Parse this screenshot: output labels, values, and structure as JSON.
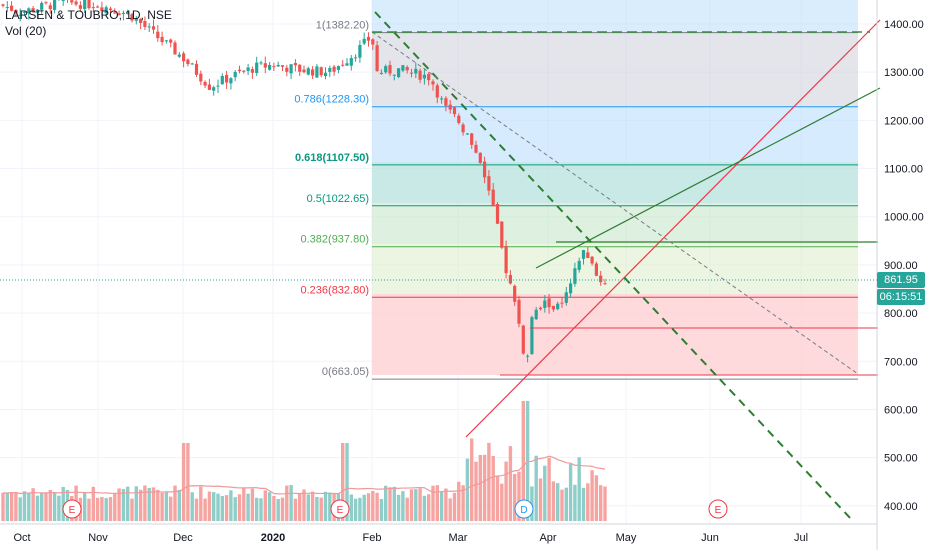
{
  "legend": {
    "symbol": "LARSEN & TOUBRO, 1D, NSE",
    "volume": "Vol (20)"
  },
  "price_axis": {
    "ticks": [
      "1400.00",
      "1300.00",
      "1200.00",
      "1100.00",
      "1000.00",
      "900.00",
      "800.00",
      "700.00",
      "600.00",
      "500.00",
      "400.00"
    ]
  },
  "time_axis": {
    "ticks": [
      "Oct",
      "Nov",
      "Dec",
      "2020",
      "Feb",
      "Mar",
      "Apr",
      "May",
      "Jun",
      "Jul"
    ]
  },
  "last_price": "861.95",
  "countdown": "06:15:51",
  "fib_levels": [
    {
      "label": "1(1382.20)",
      "value": 1382.2,
      "color": "#787b86"
    },
    {
      "label": "0.786(1228.30)",
      "value": 1228.3,
      "color": "#2196f3"
    },
    {
      "label": "0.618(1107.50)",
      "value": 1107.5,
      "color": "#089981"
    },
    {
      "label": "0.5(1022.65)",
      "value": 1022.65,
      "color": "#089981"
    },
    {
      "label": "0.382(937.80)",
      "value": 937.8,
      "color": "#4caf50"
    },
    {
      "label": "0.236(832.80)",
      "value": 832.8,
      "color": "#f23645"
    },
    {
      "label": "0(663.05)",
      "value": 663.05,
      "color": "#787b86"
    }
  ],
  "event_markers": [
    {
      "label": "E",
      "color": "#f23645"
    },
    {
      "label": "E",
      "color": "#f23645"
    },
    {
      "label": "D",
      "color": "#2196f3"
    },
    {
      "label": "E",
      "color": "#f23645"
    }
  ],
  "colors": {
    "up": "#26a69a",
    "down": "#ef5350",
    "vol_up": "#8fcec8",
    "vol_down": "#f5a4a2",
    "ma": "#ef9a9a"
  },
  "chart_data": {
    "type": "candlestick",
    "title": "LARSEN & TOUBRO, 1D, NSE",
    "y_range": [
      355,
      1440
    ],
    "ohlc_key_points": [
      {
        "date": "2019-10-01",
        "close": 1440
      },
      {
        "date": "2019-11-01",
        "close": 1440
      },
      {
        "date": "2019-11-15",
        "close": 1390
      },
      {
        "date": "2019-12-10",
        "close": 1270
      },
      {
        "date": "2020-01-01",
        "close": 1310
      },
      {
        "date": "2020-01-24",
        "close": 1340
      },
      {
        "date": "2020-01-31",
        "close": 1380
      },
      {
        "date": "2020-02-03",
        "close": 1300
      },
      {
        "date": "2020-02-20",
        "close": 1290
      },
      {
        "date": "2020-03-05",
        "close": 1200
      },
      {
        "date": "2020-03-12",
        "close": 1100
      },
      {
        "date": "2020-03-19",
        "close": 940
      },
      {
        "date": "2020-03-23",
        "close": 840
      },
      {
        "date": "2020-03-26",
        "close": 663
      },
      {
        "date": "2020-04-01",
        "close": 790
      },
      {
        "date": "2020-04-09",
        "close": 880
      },
      {
        "date": "2020-04-14",
        "close": 935
      },
      {
        "date": "2020-04-21",
        "close": 862
      }
    ],
    "volume_ma_period": 20
  }
}
